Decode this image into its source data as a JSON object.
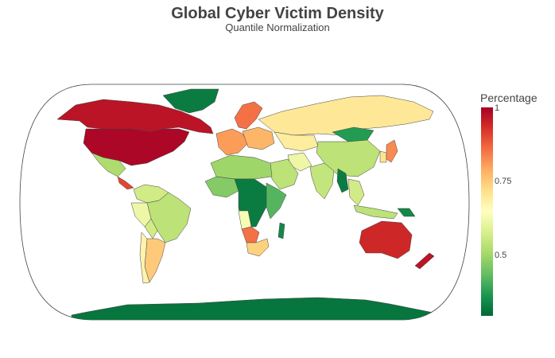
{
  "title": "Global Cyber Victim Density",
  "subtitle": "Quantile Normalization",
  "colorbar": {
    "title": "Percentage",
    "ticks": [
      "1",
      "0.75",
      "0.5"
    ],
    "stops": [
      "#006837",
      "#1a9850",
      "#66bd63",
      "#a6d96a",
      "#d9ef8b",
      "#ffffbf",
      "#fee08b",
      "#fdae61",
      "#f46d43",
      "#d73027",
      "#a50026"
    ]
  },
  "map": {
    "projection": "natural-earth",
    "regions": [
      {
        "name": "Canada",
        "value": 0.97
      },
      {
        "name": "United States",
        "value": 0.99
      },
      {
        "name": "Greenland",
        "value": 0.3
      },
      {
        "name": "Mexico",
        "value": 0.5
      },
      {
        "name": "Central America",
        "value": 0.9
      },
      {
        "name": "Colombia / Venezuela",
        "value": 0.55
      },
      {
        "name": "Brazil",
        "value": 0.52
      },
      {
        "name": "Peru",
        "value": 0.6
      },
      {
        "name": "Bolivia",
        "value": 0.55
      },
      {
        "name": "Argentina",
        "value": 0.74
      },
      {
        "name": "Chile",
        "value": 0.66
      },
      {
        "name": "Russia",
        "value": 0.69
      },
      {
        "name": "Scandinavia",
        "value": 0.85
      },
      {
        "name": "Western Europe",
        "value": 0.8
      },
      {
        "name": "Eastern Europe",
        "value": 0.77
      },
      {
        "name": "Kazakhstan",
        "value": 0.68
      },
      {
        "name": "Mongolia",
        "value": 0.35
      },
      {
        "name": "China",
        "value": 0.52
      },
      {
        "name": "India",
        "value": 0.53
      },
      {
        "name": "Southeast Asia",
        "value": 0.55
      },
      {
        "name": "Myanmar",
        "value": 0.3
      },
      {
        "name": "Japan",
        "value": 0.82
      },
      {
        "name": "Korea",
        "value": 0.7
      },
      {
        "name": "Arabian Peninsula",
        "value": 0.52
      },
      {
        "name": "Iran",
        "value": 0.6
      },
      {
        "name": "North Africa",
        "value": 0.48
      },
      {
        "name": "West Africa",
        "value": 0.45
      },
      {
        "name": "Central Africa",
        "value": 0.3
      },
      {
        "name": "East Africa",
        "value": 0.4
      },
      {
        "name": "Angola",
        "value": 0.62
      },
      {
        "name": "Namibia / Botswana",
        "value": 0.85
      },
      {
        "name": "South Africa",
        "value": 0.73
      },
      {
        "name": "Madagascar",
        "value": 0.32
      },
      {
        "name": "Indonesia",
        "value": 0.52
      },
      {
        "name": "Papua New Guinea",
        "value": 0.32
      },
      {
        "name": "Australia",
        "value": 0.94
      },
      {
        "name": "New Zealand",
        "value": 0.97
      },
      {
        "name": "Antarctica",
        "value": 0.29
      }
    ]
  }
}
